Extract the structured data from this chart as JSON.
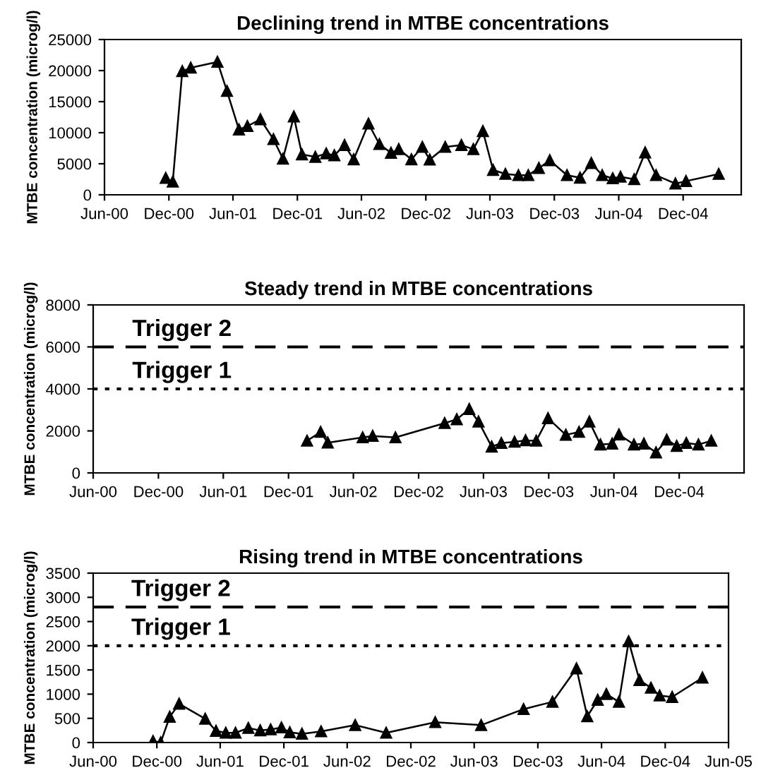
{
  "chart_data": [
    {
      "type": "line",
      "title": "Declining trend in MTBE concentrations",
      "ylabel": "MTBE concentration (microg/l)",
      "marker": "triangle",
      "line_style": "solid",
      "grid": false,
      "legend": false,
      "xlim": [
        "2000-06-01",
        "2005-05-15"
      ],
      "xticks": [
        {
          "value": "2000-06-01",
          "label": "Jun-00"
        },
        {
          "value": "2000-12-01",
          "label": "Dec-00"
        },
        {
          "value": "2001-06-01",
          "label": "Jun-01"
        },
        {
          "value": "2001-12-01",
          "label": "Dec-01"
        },
        {
          "value": "2002-06-01",
          "label": "Jun-02"
        },
        {
          "value": "2002-12-01",
          "label": "Dec-02"
        },
        {
          "value": "2003-06-01",
          "label": "Jun-03"
        },
        {
          "value": "2003-12-01",
          "label": "Dec-03"
        },
        {
          "value": "2004-06-01",
          "label": "Jun-04"
        },
        {
          "value": "2004-12-01",
          "label": "Dec-04"
        }
      ],
      "ylim": [
        0,
        25000
      ],
      "yticks": [
        0,
        5000,
        10000,
        15000,
        20000,
        25000
      ],
      "series": [
        {
          "color": "#000000",
          "x": [
            "2000-11-22",
            "2000-12-12",
            "2001-01-08",
            "2001-02-01",
            "2001-04-18",
            "2001-05-15",
            "2001-06-18",
            "2001-07-12",
            "2001-08-18",
            "2001-09-24",
            "2001-10-21",
            "2001-11-21",
            "2001-12-14",
            "2002-01-21",
            "2002-02-21",
            "2002-03-16",
            "2002-04-14",
            "2002-05-10",
            "2002-06-21",
            "2002-07-22",
            "2002-08-24",
            "2002-09-15",
            "2002-10-21",
            "2002-11-21",
            "2002-12-12",
            "2003-01-25",
            "2003-03-12",
            "2003-04-15",
            "2003-05-12",
            "2003-06-10",
            "2003-07-15",
            "2003-08-21",
            "2003-09-18",
            "2003-10-18",
            "2003-11-18",
            "2004-01-06",
            "2004-02-12",
            "2004-03-15",
            "2004-04-15",
            "2004-05-15",
            "2004-06-06",
            "2004-07-15",
            "2004-08-15",
            "2004-09-15",
            "2004-11-09",
            "2004-12-09",
            "2005-03-12"
          ],
          "values": [
            2700,
            2100,
            19900,
            20450,
            21400,
            16700,
            10500,
            11050,
            12150,
            8950,
            5800,
            12600,
            6500,
            6100,
            6650,
            6350,
            8000,
            5700,
            11450,
            8150,
            6750,
            7350,
            5700,
            7700,
            5650,
            7700,
            8000,
            7350,
            10250,
            4000,
            3350,
            3150,
            3150,
            4300,
            5550,
            3150,
            2750,
            5100,
            3150,
            2650,
            2900,
            2500,
            6800,
            3150,
            1800,
            2200,
            3350
          ]
        }
      ]
    },
    {
      "type": "line",
      "title": "Steady trend in MTBE concentrations",
      "ylabel": "MTBE concentration (microg/l)",
      "marker": "triangle",
      "line_style": "solid",
      "grid": false,
      "legend": false,
      "xlim": [
        "2000-06-01",
        "2005-06-01"
      ],
      "xticks": [
        {
          "value": "2000-06-01",
          "label": "Jun-00"
        },
        {
          "value": "2000-12-01",
          "label": "Dec-00"
        },
        {
          "value": "2001-06-01",
          "label": "Jun-01"
        },
        {
          "value": "2001-12-01",
          "label": "Dec-01"
        },
        {
          "value": "2002-06-01",
          "label": "Jun-02"
        },
        {
          "value": "2002-12-01",
          "label": "Dec-02"
        },
        {
          "value": "2003-06-01",
          "label": "Jun-03"
        },
        {
          "value": "2003-12-01",
          "label": "Dec-03"
        },
        {
          "value": "2004-06-01",
          "label": "Jun-04"
        },
        {
          "value": "2004-12-01",
          "label": "Dec-04"
        }
      ],
      "ylim": [
        0,
        8000
      ],
      "yticks": [
        0,
        2000,
        4000,
        6000,
        8000
      ],
      "ref_lines": [
        {
          "axis": "y",
          "value": 6000,
          "label": "Trigger 2",
          "color": "#000000",
          "line_style": "dashed"
        },
        {
          "axis": "y",
          "value": 4000,
          "label": "Trigger 1",
          "color": "#000000",
          "line_style": "dotted"
        }
      ],
      "series": [
        {
          "color": "#000000",
          "x": [
            "2002-01-22",
            "2002-03-01",
            "2002-03-21",
            "2002-06-27",
            "2002-07-25",
            "2002-09-27",
            "2003-02-12",
            "2003-03-18",
            "2003-04-22",
            "2003-05-18",
            "2003-06-24",
            "2003-07-21",
            "2003-08-27",
            "2003-09-27",
            "2003-10-27",
            "2003-11-29",
            "2004-01-18",
            "2004-02-24",
            "2004-03-24",
            "2004-04-24",
            "2004-05-27",
            "2004-06-15",
            "2004-07-27",
            "2004-08-24",
            "2004-09-27",
            "2004-10-27",
            "2004-11-24",
            "2004-12-21",
            "2005-01-24",
            "2005-03-01"
          ],
          "values": [
            1530,
            1950,
            1440,
            1690,
            1760,
            1690,
            2370,
            2550,
            3040,
            2440,
            1250,
            1420,
            1480,
            1550,
            1530,
            2600,
            1810,
            1950,
            2440,
            1350,
            1390,
            1830,
            1350,
            1390,
            970,
            1580,
            1280,
            1420,
            1350,
            1530
          ]
        }
      ]
    },
    {
      "type": "line",
      "title": "Rising trend in MTBE concentrations",
      "ylabel": "MTBE concentration (microg/l)",
      "marker": "triangle",
      "line_style": "solid",
      "grid": false,
      "legend": false,
      "xlim": [
        "2000-06-01",
        "2005-06-01"
      ],
      "xticks": [
        {
          "value": "2000-06-01",
          "label": "Jun-00"
        },
        {
          "value": "2000-12-01",
          "label": "Dec-00"
        },
        {
          "value": "2001-06-01",
          "label": "Jun-01"
        },
        {
          "value": "2001-12-01",
          "label": "Dec-01"
        },
        {
          "value": "2002-06-01",
          "label": "Jun-02"
        },
        {
          "value": "2002-12-01",
          "label": "Dec-02"
        },
        {
          "value": "2003-06-01",
          "label": "Jun-03"
        },
        {
          "value": "2003-12-01",
          "label": "Dec-03"
        },
        {
          "value": "2004-06-01",
          "label": "Jun-04"
        },
        {
          "value": "2004-12-01",
          "label": "Dec-04"
        },
        {
          "value": "2005-06-01",
          "label": "Jun-05"
        }
      ],
      "ylim": [
        0,
        3500
      ],
      "yticks": [
        0,
        500,
        1000,
        1500,
        2000,
        2500,
        3000,
        3500
      ],
      "ref_lines": [
        {
          "axis": "y",
          "value": 2800,
          "label": "Trigger 2",
          "color": "#000000",
          "line_style": "dashed"
        },
        {
          "axis": "y",
          "value": 2000,
          "label": "Trigger 1",
          "color": "#000000",
          "line_style": "dotted"
        }
      ],
      "series": [
        {
          "color": "#000000",
          "x": [
            "2000-11-20",
            "2000-12-12",
            "2001-01-07",
            "2001-02-03",
            "2001-04-19",
            "2001-05-20",
            "2001-06-17",
            "2001-07-15",
            "2001-08-21",
            "2001-09-24",
            "2001-10-24",
            "2001-11-24",
            "2001-12-18",
            "2002-01-22",
            "2002-03-18",
            "2002-06-24",
            "2002-09-21",
            "2003-02-09",
            "2003-06-21",
            "2003-10-21",
            "2004-01-12",
            "2004-03-21",
            "2004-04-21",
            "2004-05-21",
            "2004-06-15",
            "2004-07-21",
            "2004-08-18",
            "2004-09-18",
            "2004-10-21",
            "2004-11-15",
            "2004-12-21",
            "2005-03-18"
          ],
          "values": [
            30,
            0,
            530,
            800,
            490,
            240,
            200,
            200,
            300,
            250,
            270,
            310,
            210,
            180,
            230,
            360,
            200,
            420,
            360,
            690,
            840,
            1530,
            540,
            880,
            1000,
            840,
            2090,
            1290,
            1130,
            970,
            940,
            1340
          ]
        }
      ]
    }
  ]
}
